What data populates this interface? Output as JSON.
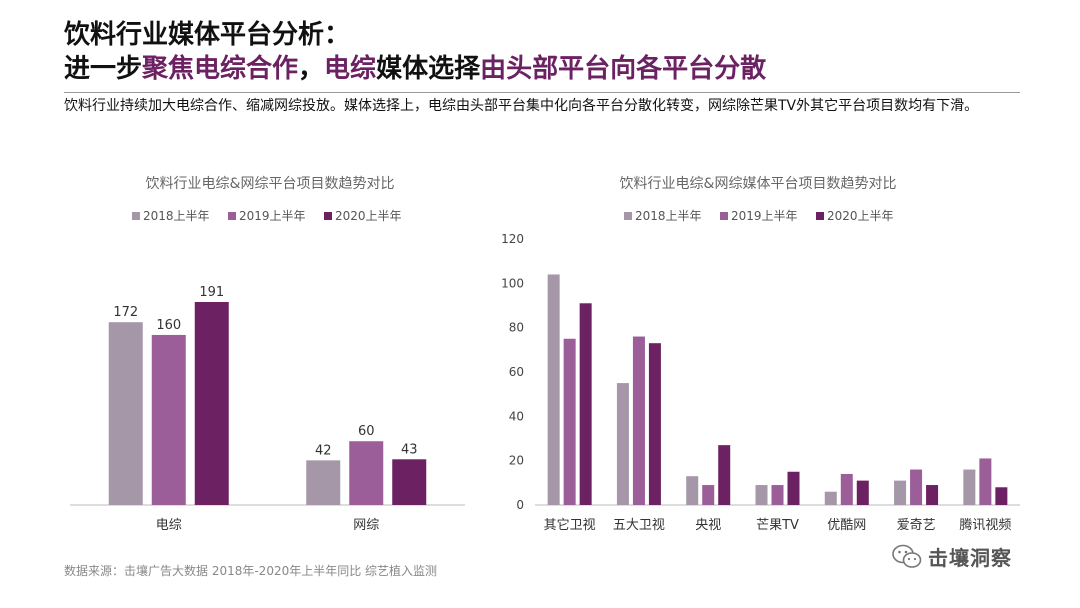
{
  "header": {
    "title_line1": "饮料行业媒体平台分析：",
    "title_line2_a": "进一步",
    "title_line2_b": "聚焦电综合作",
    "title_line2_c": "，",
    "title_line2_d": "电综",
    "title_line2_e": "媒体选择",
    "title_line2_f": "由头部平台向各平台分散",
    "description": "饮料行业持续加大电综合作、缩减网综投放。媒体选择上，电综由头部平台集中化向各平台分散化转变，网综除芒果TV外其它平台项目数均有下滑。"
  },
  "colors": {
    "s2018": "#a597a8",
    "s2019": "#9b5e99",
    "s2020": "#6b2162"
  },
  "chart_data": [
    {
      "type": "bar",
      "title": "饮料行业电综&网综平台项目数趋势对比",
      "categories": [
        "电综",
        "网综"
      ],
      "series": [
        {
          "name": "2018上半年",
          "values": [
            172,
            42
          ]
        },
        {
          "name": "2019上半年",
          "values": [
            160,
            60
          ]
        },
        {
          "name": "2020上半年",
          "values": [
            191,
            43
          ]
        }
      ],
      "data_labels": true,
      "ylim": [
        0,
        191
      ],
      "grid": false,
      "legend": "top"
    },
    {
      "type": "bar",
      "title": "饮料行业电综&网综媒体平台项目数趋势对比",
      "categories": [
        "其它卫视",
        "五大卫视",
        "央视",
        "芒果TV",
        "优酷网",
        "爱奇艺",
        "腾讯视频"
      ],
      "series": [
        {
          "name": "2018上半年",
          "values": [
            104,
            55,
            13,
            9,
            6,
            11,
            16
          ]
        },
        {
          "name": "2019上半年",
          "values": [
            75,
            76,
            9,
            9,
            14,
            16,
            21
          ]
        },
        {
          "name": "2020上半年",
          "values": [
            91,
            73,
            27,
            15,
            11,
            9,
            8
          ]
        }
      ],
      "yticks": [
        "0",
        "20",
        "40",
        "60",
        "80",
        "100",
        "120"
      ],
      "ylim": [
        0,
        120
      ],
      "grid": false,
      "legend": "top"
    }
  ],
  "footer": {
    "source": "数据来源：击壤广告大数据 2018年-2020年上半年同比 综艺植入监测",
    "brand": "击壤洞察"
  }
}
